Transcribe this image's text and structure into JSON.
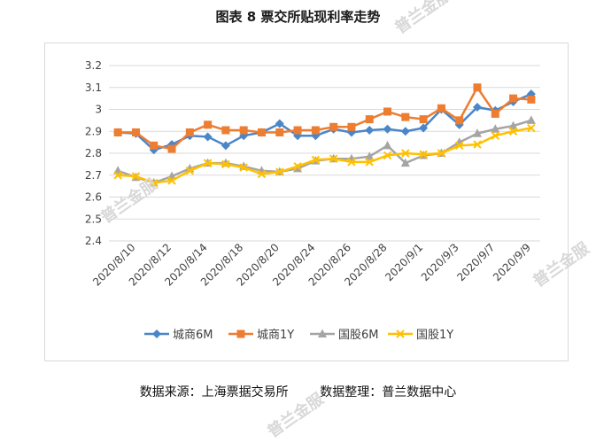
{
  "title": "图表 8  票交所贴现利率走势",
  "source_text": "数据来源：上海票据交易所        数据整理：普兰数据中心",
  "watermarks": [
    "普兰金服",
    "普兰金服",
    "普兰金服",
    "普兰金服"
  ],
  "chart_data": {
    "type": "line",
    "title": "图表 8  票交所贴现利率走势",
    "xlabel": "",
    "ylabel": "",
    "ylim": [
      2.4,
      3.2
    ],
    "yticks": [
      "2.4",
      "2.5",
      "2.6",
      "2.7",
      "2.8",
      "2.9",
      "3",
      "3.1",
      "3.2"
    ],
    "x_tick_labels": [
      "2020/8/10",
      "2020/8/12",
      "2020/8/14",
      "2020/8/18",
      "2020/8/20",
      "2020/8/24",
      "2020/8/26",
      "2020/8/28",
      "2020/9/1",
      "2020/9/3",
      "2020/9/7",
      "2020/9/9"
    ],
    "grid": true,
    "legend": "bottom",
    "series": [
      {
        "name": "城商6M",
        "color": "#4a86c8",
        "marker": "diamond",
        "values": [
          2.895,
          2.89,
          2.815,
          2.84,
          2.88,
          2.875,
          2.835,
          2.88,
          2.895,
          2.935,
          2.88,
          2.88,
          2.91,
          2.895,
          2.905,
          2.91,
          2.9,
          2.915,
          3.0,
          2.93,
          3.01,
          2.995,
          3.035,
          3.07
        ]
      },
      {
        "name": "城商1Y",
        "color": "#ed7d31",
        "marker": "square",
        "values": [
          2.895,
          2.895,
          2.835,
          2.82,
          2.895,
          2.93,
          2.905,
          2.905,
          2.895,
          2.895,
          2.905,
          2.905,
          2.92,
          2.92,
          2.955,
          2.99,
          2.965,
          2.955,
          3.005,
          2.95,
          3.1,
          2.98,
          3.05,
          3.045
        ]
      },
      {
        "name": "国股6M",
        "color": "#a5a5a5",
        "marker": "triangle",
        "values": [
          2.72,
          2.69,
          2.665,
          2.695,
          2.73,
          2.755,
          2.755,
          2.74,
          2.72,
          2.715,
          2.73,
          2.765,
          2.775,
          2.775,
          2.785,
          2.835,
          2.755,
          2.79,
          2.8,
          2.85,
          2.89,
          2.91,
          2.925,
          2.95
        ]
      },
      {
        "name": "国股1Y",
        "color": "#ffc000",
        "marker": "x",
        "values": [
          2.7,
          2.695,
          2.665,
          2.675,
          2.72,
          2.755,
          2.75,
          2.735,
          2.705,
          2.715,
          2.74,
          2.77,
          2.775,
          2.76,
          2.76,
          2.79,
          2.8,
          2.795,
          2.8,
          2.835,
          2.84,
          2.88,
          2.9,
          2.915
        ]
      }
    ]
  }
}
